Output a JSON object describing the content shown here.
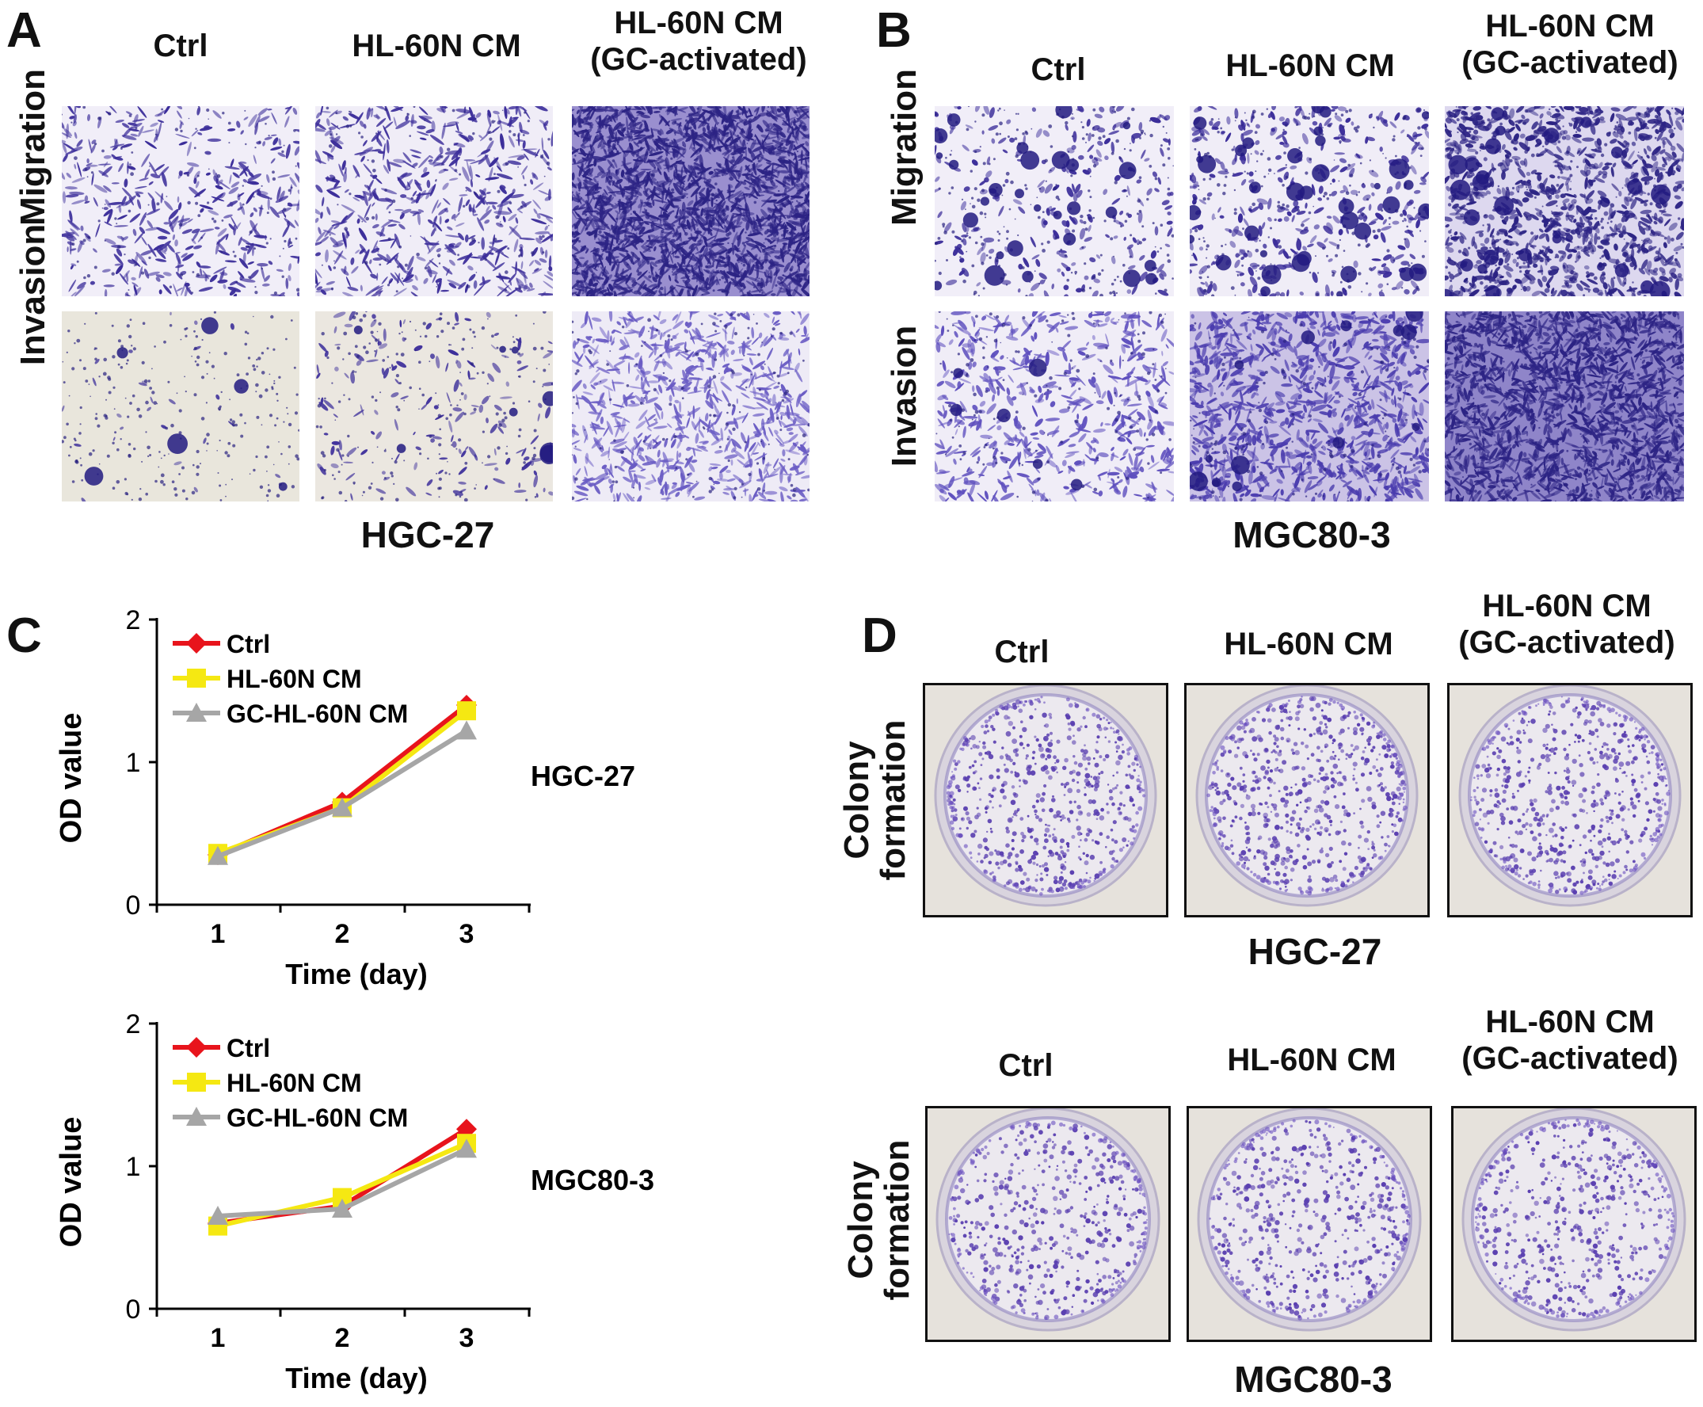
{
  "panels": {
    "A": {
      "letter": "A",
      "columns": [
        "Ctrl",
        "HL-60N CM",
        "HL-60N CM",
        "(GC-activated)"
      ],
      "rows": [
        "Migration",
        "Invasion"
      ],
      "cell_line": "HGC-27",
      "stain_color": "#3b2d9a"
    },
    "B": {
      "letter": "B",
      "columns": [
        "Ctrl",
        "HL-60N CM",
        "HL-60N CM",
        "(GC-activated)"
      ],
      "rows": [
        "Migration",
        "Invasion"
      ],
      "cell_line": "MGC80-3",
      "stain_color": "#3b2d9a"
    },
    "C": {
      "letter": "C"
    },
    "D": {
      "letter": "D",
      "top": {
        "columns": [
          "Ctrl",
          "HL-60N CM",
          "HL-60N CM",
          "(GC-activated)"
        ],
        "row_label_1": "Colony",
        "row_label_2": "formation",
        "cell_line": "HGC-27"
      },
      "bottom": {
        "columns": [
          "Ctrl",
          "HL-60N CM",
          "HL-60N CM",
          "(GC-activated)"
        ],
        "row_label_1": "Colony",
        "row_label_2": "formation",
        "cell_line": "MGC80-3"
      }
    }
  },
  "chart_data": [
    {
      "type": "line",
      "x": [
        1,
        2,
        3
      ],
      "xlabel": "Time (day)",
      "ylabel": "OD value",
      "ylim": [
        0,
        2
      ],
      "yticks": [
        0,
        1,
        2
      ],
      "xticks": [
        1,
        2,
        3
      ],
      "annotation": "HGC-27",
      "legend_placement": "top-left",
      "grid": false,
      "series": [
        {
          "name": "Ctrl",
          "values": [
            0.35,
            0.72,
            1.4
          ],
          "color": "#e8141c",
          "marker": "diamond"
        },
        {
          "name": "HL-60N CM",
          "values": [
            0.36,
            0.68,
            1.36
          ],
          "color": "#f5e812",
          "marker": "square"
        },
        {
          "name": "GC-HL-60N CM",
          "values": [
            0.34,
            0.68,
            1.22
          ],
          "color": "#a6a6a6",
          "marker": "triangle"
        }
      ]
    },
    {
      "type": "line",
      "x": [
        1,
        2,
        3
      ],
      "xlabel": "Time (day)",
      "ylabel": "OD value",
      "ylim": [
        0,
        2
      ],
      "yticks": [
        0,
        1,
        2
      ],
      "xticks": [
        1,
        2,
        3
      ],
      "annotation": "MGC80-3",
      "legend_placement": "top-left",
      "grid": false,
      "series": [
        {
          "name": "Ctrl",
          "values": [
            0.6,
            0.72,
            1.26
          ],
          "color": "#e8141c",
          "marker": "diamond"
        },
        {
          "name": "HL-60N CM",
          "values": [
            0.58,
            0.78,
            1.16
          ],
          "color": "#f5e812",
          "marker": "square"
        },
        {
          "name": "GC-HL-60N CM",
          "values": [
            0.65,
            0.7,
            1.12
          ],
          "color": "#a6a6a6",
          "marker": "triangle"
        }
      ]
    }
  ]
}
